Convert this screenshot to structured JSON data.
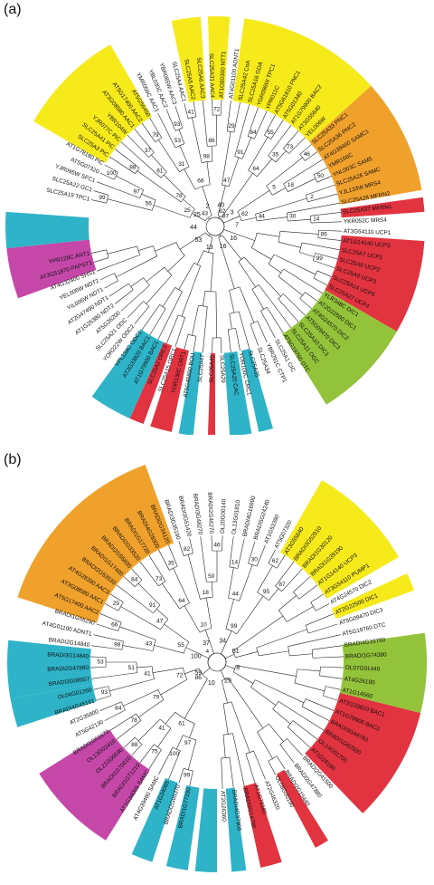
{
  "colors": {
    "yellow": "#f6ea1b",
    "orange": "#f0a12c",
    "red": "#e23340",
    "green": "#93c33a",
    "cyan": "#2fb3c8",
    "magenta": "#c548a9",
    "line": "#222222"
  },
  "panels": [
    {
      "label": "(a)",
      "sectors": [
        {
          "from": 210,
          "to": 240,
          "color": "yellow"
        },
        {
          "from": 258,
          "to": 266,
          "color": "yellow"
        },
        {
          "from": 268,
          "to": 274,
          "color": "yellow"
        },
        {
          "from": 278,
          "to": 318,
          "color": "yellow"
        },
        {
          "from": 318,
          "to": 350,
          "color": "orange"
        },
        {
          "from": 352,
          "to": 356,
          "color": "red"
        },
        {
          "from": 4,
          "to": 30,
          "color": "red"
        },
        {
          "from": 30,
          "to": 58,
          "color": "green"
        },
        {
          "from": 74,
          "to": 78,
          "color": "cyan"
        },
        {
          "from": 80,
          "to": 86,
          "color": "cyan"
        },
        {
          "from": 90,
          "to": 92,
          "color": "red"
        },
        {
          "from": 96,
          "to": 100,
          "color": "cyan"
        },
        {
          "from": 102,
          "to": 108,
          "color": "red"
        },
        {
          "from": 110,
          "to": 114,
          "color": "red"
        },
        {
          "from": 114,
          "to": 126,
          "color": "cyan"
        },
        {
          "from": 174,
          "to": 180,
          "color": "cyan"
        },
        {
          "from": 160,
          "to": 174,
          "color": "magenta"
        },
        {
          "from": 180,
          "to": 184,
          "color": "cyan"
        }
      ],
      "leaves": [
        "SLC25A19 TPC1",
        "SLC25A22 GC1",
        "YJR095W SFC1",
        "AT5G07320",
        "AT1G78180 PiC",
        "SLC25A3 PiC",
        "SLC25A41 PiC",
        "YJR077C PiC",
        "YBR104W",
        "AT3G08580 AAC1",
        "AT5G17400 AAC2",
        "AT5G56450",
        "YMR056C AAC1",
        "YBL030C AAC2",
        "YBR085W AAC3",
        "SLC25A4 AAC1",
        "SLC25A5 AAC2",
        "SLC25A6 AAC3",
        "SLC25A31 AAC4",
        "AT1G80300 NTT1",
        "AT4G01100 ADNT1",
        "SLC25A42 CoA",
        "SLC25A16 GDA",
        "YGR096W TPC1",
        "YPR011C",
        "AT5G61810 PNC1",
        "AT5G01340",
        "AT1G79900 BAC2",
        "AT3G55640",
        "YEL006W",
        "SLC25A33 PNC1",
        "SLC25A36 PNC2",
        "AT4G39460 SAMC1",
        "YMR166C",
        "YNL003C SAM5",
        "SLC25A26 SAMC",
        "YJL133W MRS4",
        "SLC25A28 MFRN2",
        "SLC25A37 MFRN1",
        "YKR052C MRS4",
        "AT3G54110 UCP1",
        "AT1G14140 UCP3",
        "SLC25A7 UCP1",
        "SLC25A8 UCP2",
        "SLC25A9 UCP3",
        "SLC25A14 UCP5",
        "SLC25A27 UCP4",
        "YLR348C DIC1",
        "AT2G22500 DIC1",
        "AT4G24570 DIC2",
        "AT5G09470 DIC3",
        "SLC25A10 DIC1",
        "SLC25A11 OGC",
        "AT5G19760 DTC",
        "SLC25A1 CIC",
        "YBR291C CTP1",
        "SLC25A34",
        "SLC25A35",
        "YOR100C CRC1",
        "SLC25A20 CAC",
        "SLC25A29",
        "SLC25A45",
        "SLC25A47",
        "AT5G46800 BOU",
        "YOR130C ORT1",
        "SLC25A15 ORC1",
        "SLC25A2 ORC2",
        "AT1G79900 BAC1",
        "AT2G33820 BAC1",
        "YPL134C ODC1",
        "YOR222W ODC2",
        "SLC25A21 ODC",
        "AT5G26200",
        "AT1G25380 NDT2",
        "AT2G47490 NDT1",
        "YIL006W NDT1",
        "YEL006W NDT2",
        "AT4G32400 SHS1",
        "AT3G51870 PAPST1",
        "YPR128C ANT1"
      ],
      "bootstrap": [
        "99",
        "100",
        "97",
        "56",
        "88",
        "37",
        "61",
        "78",
        "25",
        "79",
        "93",
        "53",
        "31",
        "41",
        "72",
        "86",
        "98",
        "66",
        "43",
        "29",
        "84",
        "91",
        "47",
        "55",
        "73",
        "35",
        "64",
        "82",
        "46",
        "50",
        "18",
        "5",
        "2",
        "14",
        "30",
        "44",
        "62",
        "87",
        "95",
        "99"
      ],
      "inner_labels": [
        "40",
        "3",
        "7",
        "16",
        "16",
        "13",
        "53",
        "44",
        "25",
        "2"
      ]
    },
    {
      "label": "(b)",
      "sectors": [
        {
          "from": 198,
          "to": 250,
          "color": "orange"
        },
        {
          "from": 300,
          "to": 330,
          "color": "yellow"
        },
        {
          "from": 335,
          "to": 340,
          "color": "yellow"
        },
        {
          "from": 352,
          "to": 14,
          "color": "green"
        },
        {
          "from": 14,
          "to": 46,
          "color": "red"
        },
        {
          "from": 58,
          "to": 62,
          "color": "red"
        },
        {
          "from": 72,
          "to": 78,
          "color": "red"
        },
        {
          "from": 82,
          "to": 86,
          "color": "cyan"
        },
        {
          "from": 90,
          "to": 96,
          "color": "cyan"
        },
        {
          "from": 98,
          "to": 104,
          "color": "cyan"
        },
        {
          "from": 108,
          "to": 114,
          "color": "cyan"
        },
        {
          "from": 122,
          "to": 148,
          "color": "magenta"
        },
        {
          "from": 162,
          "to": 170,
          "color": "cyan"
        },
        {
          "from": 170,
          "to": 186,
          "color": "cyan"
        }
      ],
      "leaves": [
        "BRADI1G77190",
        "BRADI2G05370",
        "AT1G34065",
        "AT4G39460 SAMC",
        "AT1G34065 SAMC",
        "BRADI1G71210",
        "BRADI1G70010",
        "OL21G00590",
        "OL13G02410",
        "BRADI1G61670",
        "AT5G42130",
        "AT2G35800",
        "BRADI4G45161",
        "OL04G01260",
        "BRADI3G08557",
        "BRADI2G47880",
        "BRADI3G14840",
        "BRADI2G14840",
        "AT4G01100 ADNT1",
        "BRADI1G55290",
        "AT5G17400 AAC2",
        "AT3G08580 AAC1",
        "AT4G28390 AAC3",
        "BRADI2G53530",
        "BRADI1G17400",
        "BRADI2G55600",
        "BRADI2G33520",
        "BRADI1G17720",
        "BRADI4G28300",
        "BRADI2G34120",
        "BRADI3G35190",
        "BRADI3G51420",
        "BRADI3G48270",
        "BRADI2G46270",
        "OL20G00140",
        "OL13G01810",
        "BRADI4G16990",
        "BRADI5G24240",
        "AT1G53390",
        "AT5G07320",
        "AT3G55640",
        "BRADI3G52910",
        "BRADI1G30120",
        "BRADI1G39190",
        "AT1G14140 UCP3",
        "AT3G54110 PUMP1",
        "AT4G24570 DIC2",
        "AT2G22500 DIC1",
        "AT5G09470 DIC3",
        "AT5G19760 DTC",
        "BRADI4G16780",
        "BRADI1G74380",
        "OL07G01440",
        "AT4G26180",
        "AT1G14560",
        "AT2G33820 BAC1",
        "AT1G79900 BAC2",
        "BRADI3G44760",
        "BRADI1G62500",
        "OL14G01700",
        "AT1G26180",
        "BRADI2G41500",
        "BRADI2G47880",
        "BRADI2G15440",
        "OL08G00190",
        "AT2G46320",
        "AT1G78180",
        "BRADI2G14790",
        "BRADI4G37800",
        "AT2G26360"
      ],
      "bootstrap": [
        "99",
        "100",
        "97",
        "75",
        "88",
        "41",
        "61",
        "78",
        "84",
        "79",
        "93",
        "53",
        "51",
        "41",
        "72",
        "86",
        "98",
        "66",
        "43",
        "29",
        "84",
        "91",
        "47",
        "55",
        "73",
        "35",
        "64",
        "82",
        "46",
        "50",
        "18",
        "10",
        "4",
        "14",
        "30",
        "44",
        "62",
        "87",
        "95",
        "99"
      ],
      "inner_labels": [
        "34",
        "51",
        "8",
        "29",
        "10",
        "59",
        "100",
        "37"
      ]
    }
  ]
}
